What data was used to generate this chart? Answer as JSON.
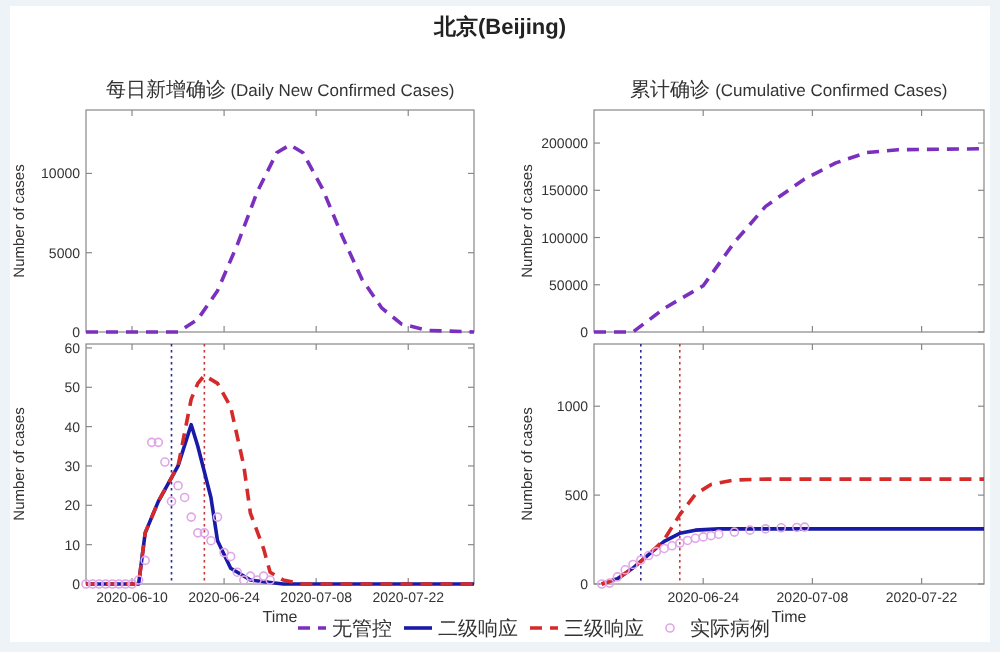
{
  "chart_data": [
    {
      "type": "line",
      "title": "北京(Beijing)",
      "subtitle": "每日新增确诊 (Daily New Confirmed Cases)",
      "ylabel": "Number of cases",
      "xlim": [
        "2020-06-03",
        "2020-08-01"
      ],
      "ylim": [
        0,
        14000
      ],
      "yticks": [
        0,
        5000,
        10000
      ],
      "xticks": [
        "2020-06-10",
        "2020-06-24",
        "2020-07-08",
        "2020-07-22"
      ],
      "tick_labels": "y",
      "legend": "bottom",
      "series": [
        {
          "name": "无管控",
          "color": "#7b2fbe",
          "line_style": "dashed",
          "x": [
            "2020-06-03",
            "2020-06-17",
            "2020-06-20",
            "2020-06-23",
            "2020-06-26",
            "2020-06-29",
            "2020-07-02",
            "2020-07-04",
            "2020-07-06",
            "2020-07-09",
            "2020-07-12",
            "2020-07-15",
            "2020-07-18",
            "2020-07-21",
            "2020-07-25",
            "2020-08-01"
          ],
          "values": [
            0,
            0,
            800,
            2600,
            5500,
            8800,
            11300,
            11800,
            11300,
            9000,
            6000,
            3300,
            1500,
            500,
            100,
            0
          ]
        }
      ]
    },
    {
      "type": "line",
      "title": "累计确诊 (Cumulative Confirmed Cases)",
      "ylabel": "Number of cases",
      "xlim": [
        "2020-06-10",
        "2020-07-30"
      ],
      "ylim": [
        0,
        235000
      ],
      "yticks": [
        0,
        50000,
        100000,
        150000,
        200000
      ],
      "xticks": [
        "2020-06-24",
        "2020-07-08",
        "2020-07-22"
      ],
      "tick_labels": "y",
      "series": [
        {
          "color": "#7b2fbe",
          "line_style": "dashed",
          "x": [
            "2020-06-10",
            "2020-06-15",
            "2020-06-19",
            "2020-06-24",
            "2020-06-28",
            "2020-07-02",
            "2020-07-07",
            "2020-07-11",
            "2020-07-15",
            "2020-07-19",
            "2020-07-30"
          ],
          "values": [
            0,
            0,
            25000,
            49000,
            95000,
            133000,
            162000,
            179000,
            190000,
            193000,
            194000
          ]
        }
      ]
    },
    {
      "type": "line",
      "ylabel": "Number of cases",
      "xlabel": "Time",
      "xlim": [
        "2020-06-03",
        "2020-08-01"
      ],
      "ylim": [
        0,
        61
      ],
      "yticks": [
        0,
        10,
        20,
        30,
        40,
        50,
        60
      ],
      "xticks": [
        "2020-06-10",
        "2020-06-24",
        "2020-07-08",
        "2020-07-22"
      ],
      "legend": "bottom",
      "ref_lines": [
        {
          "axis": "x",
          "value": "2020-06-16",
          "color": "#2a2a9a",
          "line_style": "dotted"
        },
        {
          "axis": "x",
          "value": "2020-06-21",
          "color": "#c43a3a",
          "line_style": "dotted"
        }
      ],
      "series": [
        {
          "name": "二级响应",
          "color": "#1a1aa8",
          "line_style": "solid",
          "x": [
            "2020-06-03",
            "2020-06-11",
            "2020-06-12",
            "2020-06-14",
            "2020-06-17",
            "2020-06-19",
            "2020-06-20",
            "2020-06-22",
            "2020-06-23",
            "2020-06-25",
            "2020-06-28",
            "2020-07-03",
            "2020-08-01"
          ],
          "values": [
            0,
            0,
            13,
            21,
            30,
            40.5,
            35,
            22,
            11,
            4,
            1,
            0,
            0
          ]
        },
        {
          "name": "三级响应",
          "color": "#d42a2a",
          "line_style": "dashed",
          "x": [
            "2020-06-03",
            "2020-06-11",
            "2020-06-12",
            "2020-06-14",
            "2020-06-17",
            "2020-06-19",
            "2020-06-20",
            "2020-06-21",
            "2020-06-23",
            "2020-06-25",
            "2020-06-27",
            "2020-06-28",
            "2020-06-30",
            "2020-07-01",
            "2020-07-03",
            "2020-07-06",
            "2020-08-01"
          ],
          "values": [
            0,
            0,
            13,
            21,
            30,
            47,
            51,
            53,
            51,
            45,
            30,
            18,
            9,
            3,
            1,
            0,
            0
          ]
        },
        {
          "name": "实际病例",
          "type": "scatter",
          "marker": "circle",
          "color": "#e0a6e8",
          "x": [
            "2020-06-03",
            "2020-06-04",
            "2020-06-05",
            "2020-06-06",
            "2020-06-07",
            "2020-06-08",
            "2020-06-09",
            "2020-06-10",
            "2020-06-11",
            "2020-06-12",
            "2020-06-13",
            "2020-06-14",
            "2020-06-15",
            "2020-06-16",
            "2020-06-17",
            "2020-06-18",
            "2020-06-19",
            "2020-06-20",
            "2020-06-21",
            "2020-06-22",
            "2020-06-23",
            "2020-06-24",
            "2020-06-25",
            "2020-06-26",
            "2020-06-27",
            "2020-06-28",
            "2020-06-29",
            "2020-06-30",
            "2020-07-01"
          ],
          "values": [
            0,
            0,
            0,
            0,
            0,
            0,
            0,
            0,
            1,
            6,
            36,
            36,
            31,
            21,
            25,
            22,
            17,
            13,
            13,
            11,
            17,
            8,
            7,
            3,
            1,
            2,
            1,
            2,
            1
          ]
        }
      ]
    },
    {
      "type": "line",
      "ylabel": "Number of cases",
      "xlabel": "Time",
      "xlim": [
        "2020-06-10",
        "2020-07-30"
      ],
      "ylim": [
        0,
        1350
      ],
      "yticks": [
        0,
        500,
        1000
      ],
      "xticks": [
        "2020-06-24",
        "2020-07-08",
        "2020-07-22"
      ],
      "ref_lines": [
        {
          "axis": "x",
          "value": "2020-06-16",
          "color": "#2a2a9a",
          "line_style": "dotted"
        },
        {
          "axis": "x",
          "value": "2020-06-21",
          "color": "#c43a3a",
          "line_style": "dotted"
        }
      ],
      "series": [
        {
          "color": "#1a1aa8",
          "line_style": "solid",
          "x": [
            "2020-06-11",
            "2020-06-13",
            "2020-06-15",
            "2020-06-17",
            "2020-06-19",
            "2020-06-21",
            "2020-06-23",
            "2020-06-26",
            "2020-07-30"
          ],
          "values": [
            0,
            30,
            90,
            165,
            240,
            285,
            303,
            310,
            310
          ]
        },
        {
          "color": "#d42a2a",
          "line_style": "dashed",
          "x": [
            "2020-06-11",
            "2020-06-13",
            "2020-06-15",
            "2020-06-17",
            "2020-06-19",
            "2020-06-20",
            "2020-06-21",
            "2020-06-23",
            "2020-06-25",
            "2020-06-28",
            "2020-07-02",
            "2020-07-30"
          ],
          "values": [
            0,
            30,
            90,
            165,
            250,
            320,
            390,
            505,
            560,
            585,
            590,
            590
          ]
        },
        {
          "type": "scatter",
          "marker": "circle",
          "color": "#e0a6e8",
          "x": [
            "2020-06-11",
            "2020-06-12",
            "2020-06-13",
            "2020-06-14",
            "2020-06-15",
            "2020-06-16",
            "2020-06-17",
            "2020-06-18",
            "2020-06-19",
            "2020-06-20",
            "2020-06-21",
            "2020-06-22",
            "2020-06-23",
            "2020-06-24",
            "2020-06-25",
            "2020-06-26",
            "2020-06-28",
            "2020-06-30",
            "2020-07-02",
            "2020-07-04",
            "2020-07-06",
            "2020-07-07"
          ],
          "values": [
            0,
            5,
            40,
            80,
            110,
            135,
            160,
            182,
            200,
            215,
            230,
            245,
            257,
            265,
            272,
            280,
            292,
            303,
            310,
            316,
            318,
            320
          ]
        }
      ]
    }
  ]
}
